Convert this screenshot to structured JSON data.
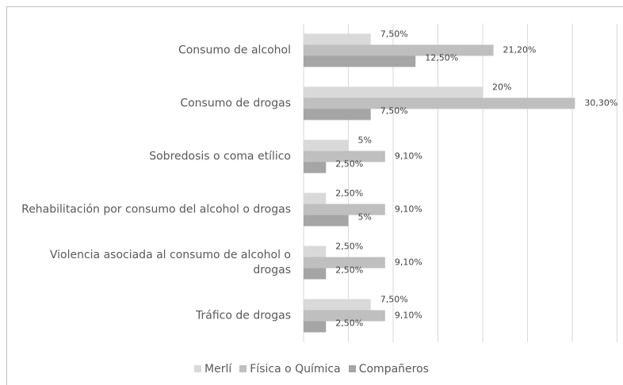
{
  "chart_data": {
    "type": "bar",
    "orientation": "horizontal",
    "categories": [
      "Consumo de alcohol",
      "Consumo de drogas",
      "Sobredosis o coma etílico",
      "Rehabilitación por consumo del alcohol o drogas",
      "Violencia asociada al consumo de alcohol o drogas",
      "Tráfico de drogas"
    ],
    "series": [
      {
        "name": "Merlí",
        "color": "#d9d9d9",
        "values": [
          7.5,
          20,
          5,
          2.5,
          2.5,
          7.5
        ],
        "value_labels": [
          "7,50%",
          "20%",
          "5%",
          "2,50%",
          "2,50%",
          "7,50%"
        ]
      },
      {
        "name": "Física o Química",
        "color": "#bfbfbf",
        "values": [
          21.2,
          30.3,
          9.1,
          9.1,
          9.1,
          9.1
        ],
        "value_labels": [
          "21,20%",
          "30,30%",
          "9,10%",
          "9,10%",
          "9,10%",
          "9,10%"
        ]
      },
      {
        "name": "Compañeros",
        "color": "#a5a5a5",
        "values": [
          12.5,
          7.5,
          2.5,
          5,
          2.5,
          2.5
        ],
        "value_labels": [
          "12,50%",
          "7,50%",
          "2,50%",
          "5%",
          "2,50%",
          "2,50%"
        ]
      }
    ],
    "xlim": [
      0,
      35
    ],
    "xticks": [
      0,
      5,
      10,
      15,
      20,
      25,
      30,
      35
    ],
    "grid": true,
    "legend": "bottom"
  }
}
